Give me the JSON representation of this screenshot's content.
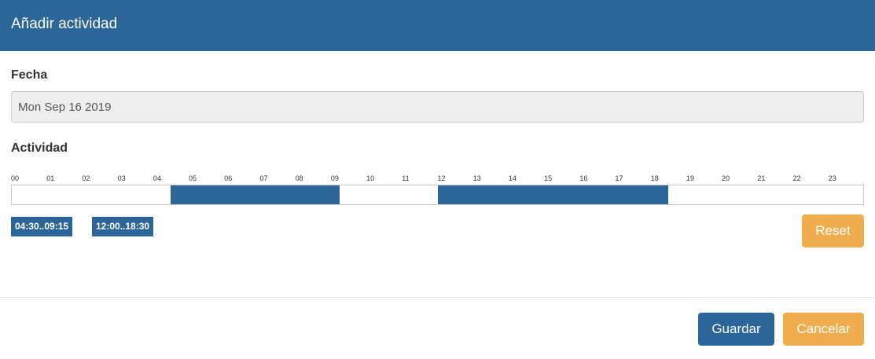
{
  "header": {
    "title": "Añadir actividad"
  },
  "date_field": {
    "label": "Fecha",
    "value": "Mon Sep 16 2019"
  },
  "activity": {
    "label": "Actividad",
    "hours": [
      "00",
      "01",
      "02",
      "03",
      "04",
      "05",
      "06",
      "07",
      "08",
      "09",
      "10",
      "11",
      "12",
      "13",
      "14",
      "15",
      "16",
      "17",
      "18",
      "19",
      "20",
      "21",
      "22",
      "23"
    ],
    "ranges": [
      {
        "start": 4.5,
        "end": 9.25,
        "label": "04:30..09:15"
      },
      {
        "start": 12,
        "end": 18.5,
        "label": "12:00..18:30"
      }
    ]
  },
  "buttons": {
    "reset": "Reset",
    "save": "Guardar",
    "cancel": "Cancelar"
  }
}
